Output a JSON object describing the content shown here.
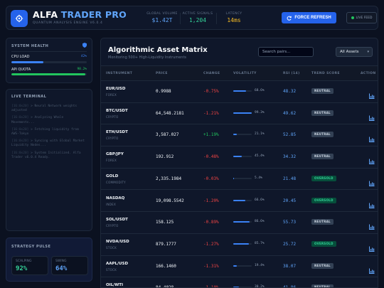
{
  "header": {
    "brand_part1": "ALFA",
    "brand_part2": "TRADER PRO",
    "subtitle": "QUANTUM ANALYSIS ENGINE V6.0.4",
    "stats": [
      {
        "label": "GLOBAL VOLUME",
        "value": "$1.42T",
        "color": "#60a5fa"
      },
      {
        "label": "ACTIVE SIGNALS",
        "value": "1,204",
        "color": "#34d399"
      },
      {
        "label": "LATENCY",
        "value": "14ms",
        "color": "#fbbf24"
      }
    ],
    "refresh_label": "FORCE REFRESH",
    "live_label": "LIVE FEED"
  },
  "health": {
    "title": "SYSTEM HEALTH",
    "metrics": [
      {
        "label": "CPU LOAD",
        "value": "42%",
        "level": 0.42,
        "color": "#3b82f6"
      },
      {
        "label": "API QUOTA",
        "value": "98.2%",
        "level": 0.982,
        "color": "#22c55e"
      }
    ]
  },
  "terminal": {
    "title": "LIVE TERMINAL",
    "logs": [
      {
        "ts": "[16:0x20]",
        "text": "> Neural Network weights adjusted"
      },
      {
        "ts": "[16:0x20]",
        "text": "> Analyzing Whale Movements..."
      },
      {
        "ts": "[16:0x20]",
        "text": "> Fetching liquidity from AWS-Tokyo"
      },
      {
        "ts": "[16:0x20]",
        "text": "> Syncing with Global Market Liquidity Nodes..."
      },
      {
        "ts": "[16:0x20]",
        "text": "> System Initialized. Alfa Trader v6.0.4 Ready."
      }
    ]
  },
  "pulse": {
    "title": "STRATEGY PULSE",
    "items": [
      {
        "label": "SCALPING",
        "value": "92%",
        "color": "#34d399"
      },
      {
        "label": "SWING",
        "value": "64%",
        "color": "#60a5fa"
      }
    ]
  },
  "matrix": {
    "title": "Algorithmic Asset Matrix",
    "subtitle": "Monitoring 500+ High-Liquidity Instruments",
    "search_placeholder": "Search pairs...",
    "filter_value": "All Assets",
    "columns": [
      "INSTRUMENT",
      "PRICE",
      "CHANGE",
      "VOLATILITY",
      "RSI (14)",
      "TREND SCORE",
      "ACTION"
    ],
    "rows": [
      {
        "symbol": "EUR/USD",
        "class": "FOREX",
        "price": "0.9988",
        "change": "-0.75%",
        "dir": "down",
        "volatility": "68.6%",
        "vol_level": 0.686,
        "rsi": "48.32",
        "trend": "NEUTRAL"
      },
      {
        "symbol": "BTC/USDT",
        "class": "CRYPTO",
        "price": "64,548.2181",
        "change": "-1.21%",
        "dir": "down",
        "volatility": "99.3%",
        "vol_level": 0.993,
        "rsi": "49.62",
        "trend": "NEUTRAL"
      },
      {
        "symbol": "ETH/USDT",
        "class": "CRYPTO",
        "price": "3,587.027",
        "change": "+1.19%",
        "dir": "up",
        "volatility": "21.1%",
        "vol_level": 0.211,
        "rsi": "52.85",
        "trend": "NEUTRAL"
      },
      {
        "symbol": "GBP/JPY",
        "class": "FOREX",
        "price": "192.912",
        "change": "-0.48%",
        "dir": "down",
        "volatility": "45.4%",
        "vol_level": 0.454,
        "rsi": "34.32",
        "trend": "NEUTRAL"
      },
      {
        "symbol": "GOLD",
        "class": "COMMODITY",
        "price": "2,335.1984",
        "change": "-0.03%",
        "dir": "down",
        "volatility": "5.4%",
        "vol_level": 0.054,
        "rsi": "21.48",
        "trend": "OVERSOLD"
      },
      {
        "symbol": "NASDAQ",
        "class": "INDEX",
        "price": "19,098.5542",
        "change": "-1.20%",
        "dir": "down",
        "volatility": "66.6%",
        "vol_level": 0.666,
        "rsi": "20.45",
        "trend": "OVERSOLD"
      },
      {
        "symbol": "SOL/USDT",
        "class": "CRYPTO",
        "price": "158.125",
        "change": "-0.89%",
        "dir": "down",
        "volatility": "86.6%",
        "vol_level": 0.866,
        "rsi": "55.73",
        "trend": "NEUTRAL"
      },
      {
        "symbol": "NVDA/USD",
        "class": "STOCK",
        "price": "879.1777",
        "change": "-1.27%",
        "dir": "down",
        "volatility": "85.7%",
        "vol_level": 0.857,
        "rsi": "25.72",
        "trend": "OVERSOLD"
      },
      {
        "symbol": "AAPL/USD",
        "class": "STOCK",
        "price": "166.1460",
        "change": "-1.31%",
        "dir": "down",
        "volatility": "19.4%",
        "vol_level": 0.194,
        "rsi": "38.07",
        "trend": "NEUTRAL"
      },
      {
        "symbol": "OIL/WTI",
        "class": "COMMODITY",
        "price": "84.4028",
        "change": "-1.10%",
        "dir": "down",
        "volatility": "30.2%",
        "vol_level": 0.302,
        "rsi": "41.86",
        "trend": "NEUTRAL"
      }
    ]
  },
  "colors": {
    "up": "#22c55e",
    "down": "#ef4444",
    "accent": "#2563eb"
  }
}
